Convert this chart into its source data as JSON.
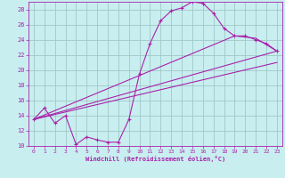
{
  "xlabel": "Windchill (Refroidissement éolien,°C)",
  "xlim": [
    -0.5,
    23.5
  ],
  "ylim": [
    10,
    29
  ],
  "xticks": [
    0,
    1,
    2,
    3,
    4,
    5,
    6,
    7,
    8,
    9,
    10,
    11,
    12,
    13,
    14,
    15,
    16,
    17,
    18,
    19,
    20,
    21,
    22,
    23
  ],
  "yticks": [
    10,
    12,
    14,
    16,
    18,
    20,
    22,
    24,
    26,
    28
  ],
  "bg_color": "#c8eef0",
  "line_color": "#aa22aa",
  "grid_color": "#a0c8c8",
  "series1_x": [
    0,
    1,
    2,
    3,
    4,
    5,
    6,
    7,
    8,
    9,
    10,
    11,
    12,
    13,
    14,
    15,
    16,
    17,
    18,
    19,
    20,
    21,
    22,
    23
  ],
  "series1_y": [
    13.5,
    15.0,
    13.0,
    14.0,
    10.2,
    11.2,
    10.8,
    10.5,
    10.5,
    13.5,
    19.5,
    23.5,
    26.5,
    27.8,
    28.2,
    29.0,
    28.8,
    27.5,
    25.5,
    24.5,
    24.5,
    24.0,
    23.5,
    22.5
  ],
  "series2_x": [
    0,
    23
  ],
  "series2_y": [
    13.5,
    22.5
  ],
  "series3_x": [
    0,
    23
  ],
  "series3_y": [
    13.5,
    21.0
  ],
  "series4_x": [
    0,
    19,
    21,
    23
  ],
  "series4_y": [
    13.5,
    24.5,
    24.2,
    22.5
  ]
}
